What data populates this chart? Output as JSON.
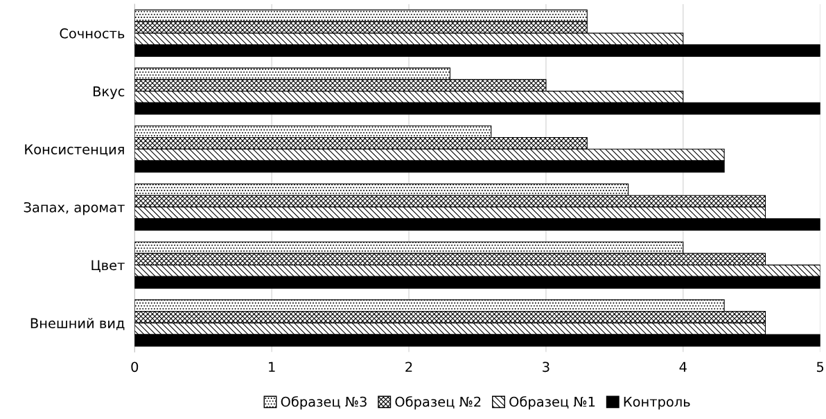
{
  "chart_data": {
    "type": "bar",
    "orientation": "horizontal",
    "categories": [
      "Сочность",
      "Вкус",
      "Консистенция",
      "Запах, аромат",
      "Цвет",
      "Внешний вид"
    ],
    "series": [
      {
        "name": "Образец №3",
        "color": "#000000",
        "values": [
          3.3,
          2.3,
          2.6,
          3.6,
          4.0,
          4.3
        ]
      },
      {
        "name": "Образец №2",
        "color": "#000000",
        "values": [
          3.3,
          3.0,
          3.3,
          4.6,
          4.6,
          4.6
        ]
      },
      {
        "name": "Образец №1",
        "color": "#000000",
        "values": [
          4.0,
          4.0,
          4.3,
          4.6,
          5.0,
          4.6
        ]
      },
      {
        "name": "Контроль",
        "color": "#000000",
        "values": [
          5.0,
          5.0,
          4.3,
          5.0,
          5.0,
          5.0
        ]
      }
    ],
    "xlim": [
      0,
      5
    ],
    "xticks": [
      0,
      1,
      2,
      3,
      4,
      5
    ],
    "grid": "x",
    "legend": "bottom"
  }
}
